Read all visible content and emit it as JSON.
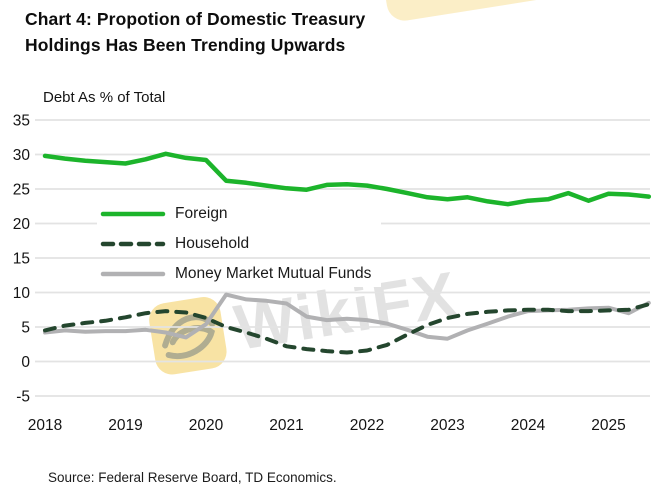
{
  "header": {
    "title_line1": "Chart 4: Propotion of Domestic Treasury",
    "title_line2": "Holdings Has Been Trending Upwards"
  },
  "chart_data": {
    "type": "line",
    "title": "Chart 4: Propotion of Domestic Treasury Holdings Has Been Trending Upwards",
    "ylabel": "Debt As % of Total",
    "ylim": [
      -5,
      35
    ],
    "yticks": [
      35,
      30,
      25,
      20,
      15,
      10,
      5,
      0,
      -5
    ],
    "xtick_labels": [
      "2018",
      "2019",
      "2020",
      "2021",
      "2022",
      "2023",
      "2024",
      "2025"
    ],
    "x_frequency": "quarterly",
    "x_range": [
      "2018Q1",
      "2025Q3"
    ],
    "grid": "horizontal",
    "gridline_color": "#e3e3e3",
    "legend_position": "inside-upper-left",
    "series": [
      {
        "name": "Foreign",
        "color": "#1cb42b",
        "style": "solid",
        "values": [
          29.8,
          29.4,
          29.1,
          28.9,
          28.7,
          29.3,
          30.1,
          29.5,
          29.2,
          26.2,
          25.9,
          25.5,
          25.1,
          24.9,
          25.6,
          25.7,
          25.5,
          25.0,
          24.4,
          23.8,
          23.5,
          23.8,
          23.2,
          22.8,
          23.3,
          23.5,
          24.4,
          23.3,
          24.3,
          24.2,
          23.9
        ]
      },
      {
        "name": "Household",
        "color": "#24462e",
        "style": "dashed",
        "values": [
          4.5,
          5.2,
          5.6,
          5.9,
          6.4,
          7.0,
          7.3,
          7.1,
          6.3,
          5.0,
          4.2,
          3.3,
          2.2,
          1.8,
          1.5,
          1.3,
          1.6,
          2.4,
          3.9,
          5.3,
          6.3,
          6.9,
          7.2,
          7.4,
          7.5,
          7.5,
          7.3,
          7.3,
          7.4,
          7.5,
          8.3
        ]
      },
      {
        "name": "Money Market Mutual Funds",
        "color": "#b1b1b3",
        "style": "solid",
        "values": [
          4.2,
          4.5,
          4.3,
          4.4,
          4.4,
          4.6,
          4.2,
          3.5,
          5.4,
          9.7,
          9.0,
          8.8,
          8.4,
          6.5,
          6.0,
          6.2,
          6.0,
          5.5,
          4.6,
          3.6,
          3.3,
          4.5,
          5.5,
          6.5,
          7.3,
          7.4,
          7.5,
          7.7,
          7.8,
          7.0,
          8.5
        ]
      }
    ]
  },
  "watermark": {
    "text": "WikiFX",
    "icon_color": "#f2c94c",
    "text_color": "#c7c7c7"
  },
  "footer": {
    "source": "Source: Federal Reserve Board, TD Economics."
  }
}
